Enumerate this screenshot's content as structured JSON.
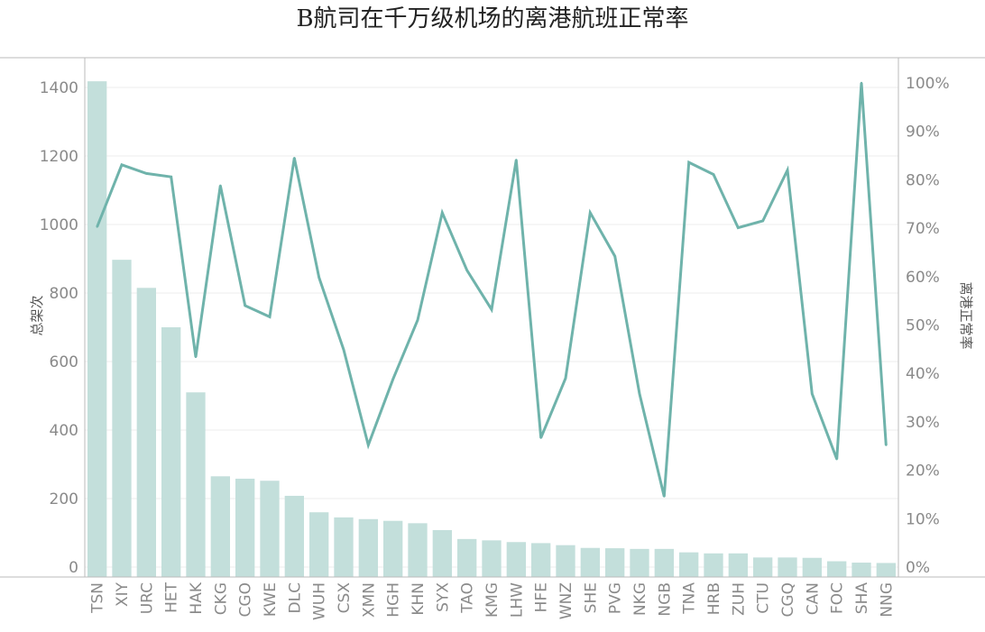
{
  "chart_data": {
    "type": "bar",
    "title": "B航司在千万级机场的离港航班正常率",
    "xlabel": "",
    "ylabel": "总架次",
    "y2label": "离港正常率",
    "categories": [
      "TSN",
      "XIY",
      "URC",
      "HET",
      "HAK",
      "CKG",
      "CGO",
      "KWE",
      "DLC",
      "WUH",
      "CSX",
      "XMN",
      "HGH",
      "KHN",
      "SYX",
      "TAO",
      "KMG",
      "LHW",
      "HFE",
      "WNZ",
      "SHE",
      "PVG",
      "NKG",
      "NGB",
      "TNA",
      "HRB",
      "ZUH",
      "CTU",
      "CGQ",
      "CAN",
      "FOC",
      "SHA",
      "NNG"
    ],
    "series": [
      {
        "kind": "bar",
        "axis": "left",
        "values": [
          1418,
          897,
          815,
          700,
          510,
          265,
          258,
          252,
          208,
          160,
          145,
          140,
          135,
          128,
          108,
          82,
          78,
          73,
          70,
          64,
          56,
          55,
          53,
          53,
          43,
          40,
          40,
          28,
          28,
          27,
          17,
          13,
          12
        ]
      },
      {
        "kind": "line",
        "axis": "right",
        "values": [
          70.3,
          83.1,
          81.3,
          80.6,
          43.4,
          78.8,
          54.0,
          51.7,
          84.5,
          59.8,
          44.9,
          25.2,
          38.8,
          51.0,
          73.2,
          61.3,
          53.2,
          84.1,
          26.7,
          39.0,
          73.2,
          64.2,
          35.8,
          14.6,
          83.6,
          81.1,
          70.1,
          71.5,
          82.0,
          35.8,
          22.3,
          100.0,
          25.2
        ]
      }
    ],
    "ylim": [
      0,
      1470
    ],
    "y2lim": [
      0,
      105
    ],
    "yticks": [
      0,
      200,
      400,
      600,
      800,
      1000,
      1200,
      1400
    ],
    "y2ticks": [
      "0%",
      "10%",
      "20%",
      "30%",
      "40%",
      "50%",
      "60%",
      "70%",
      "80%",
      "90%",
      "100%"
    ],
    "y2tick_values": [
      0,
      10,
      20,
      30,
      40,
      50,
      60,
      70,
      80,
      90,
      100
    ],
    "grid": true,
    "colors": {
      "bar": "#c3dfdb",
      "line": "#6fb3ab"
    }
  }
}
